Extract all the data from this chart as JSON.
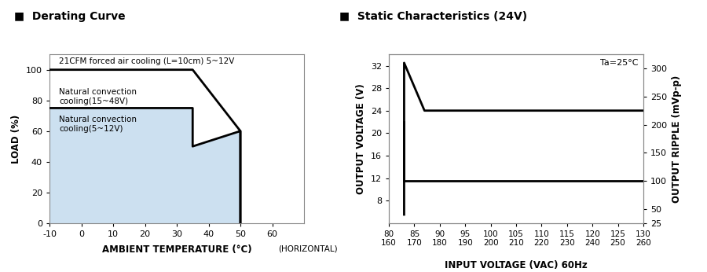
{
  "left_title": "■  Derating Curve",
  "right_title": "■  Static Characteristics (24V)",
  "derating": {
    "xlabel": "AMBIENT TEMPERATURE (°C)",
    "ylabel": "LOAD (%)",
    "xlim": [
      -10,
      70
    ],
    "ylim": [
      0,
      110
    ],
    "xticks": [
      -10,
      0,
      10,
      20,
      30,
      40,
      50,
      60
    ],
    "xtick_labels": [
      "-10",
      "0",
      "10",
      "20",
      "30",
      "40",
      "50",
      "60"
    ],
    "yticks": [
      0,
      20,
      40,
      60,
      80,
      100
    ],
    "extra_xlabel": "(HORIZONTAL)",
    "line1_x": [
      -10,
      35,
      50,
      50
    ],
    "line1_y": [
      100,
      100,
      60,
      0
    ],
    "line2_x": [
      -10,
      35,
      35,
      50,
      50
    ],
    "line2_y": [
      75,
      75,
      50,
      60,
      0
    ],
    "fill_x": [
      -10,
      35,
      35,
      50,
      50,
      -10
    ],
    "fill_y": [
      75,
      75,
      50,
      60,
      0,
      0
    ],
    "fill_color": "#cce0f0",
    "label1": "21CFM forced air cooling (L=10cm) 5~12V",
    "label2": "Natural convection\ncooling(15~48V)",
    "label3": "Natural convection\ncooling(5~12V)"
  },
  "static": {
    "xlabel": "INPUT VOLTAGE (VAC) 60Hz",
    "ylabel_left": "OUTPUT VOLTAGE (V)",
    "ylabel_right": "OUTPUT RIPPLE (mVp-p)",
    "ta_label": "Ta=25°C",
    "xlim": [
      80,
      130
    ],
    "ylim_left": [
      4,
      34
    ],
    "ylim_right": [
      25,
      325
    ],
    "xticks": [
      80,
      85,
      90,
      95,
      100,
      105,
      110,
      115,
      120,
      125,
      130
    ],
    "xtick_labels_top": [
      "80",
      "85",
      "90",
      "95",
      "100",
      "105",
      "110",
      "115",
      "120",
      "125",
      "130"
    ],
    "xtick_labels_bottom": [
      "160",
      "170",
      "180",
      "190",
      "200",
      "210",
      "220",
      "230",
      "240",
      "250",
      "260"
    ],
    "yticks_left": [
      8,
      12,
      16,
      20,
      24,
      28,
      32
    ],
    "yticks_right": [
      25,
      50,
      100,
      150,
      200,
      250,
      300
    ],
    "voltage_line_x": [
      83,
      83,
      87,
      130
    ],
    "voltage_line_y": [
      5.5,
      32.5,
      24,
      24
    ],
    "ripple_line_x": [
      83,
      83,
      88,
      130
    ],
    "ripple_line_y": [
      22,
      11.5,
      11.5,
      11.5
    ],
    "line_color": "#000000",
    "line_width": 2.0
  }
}
